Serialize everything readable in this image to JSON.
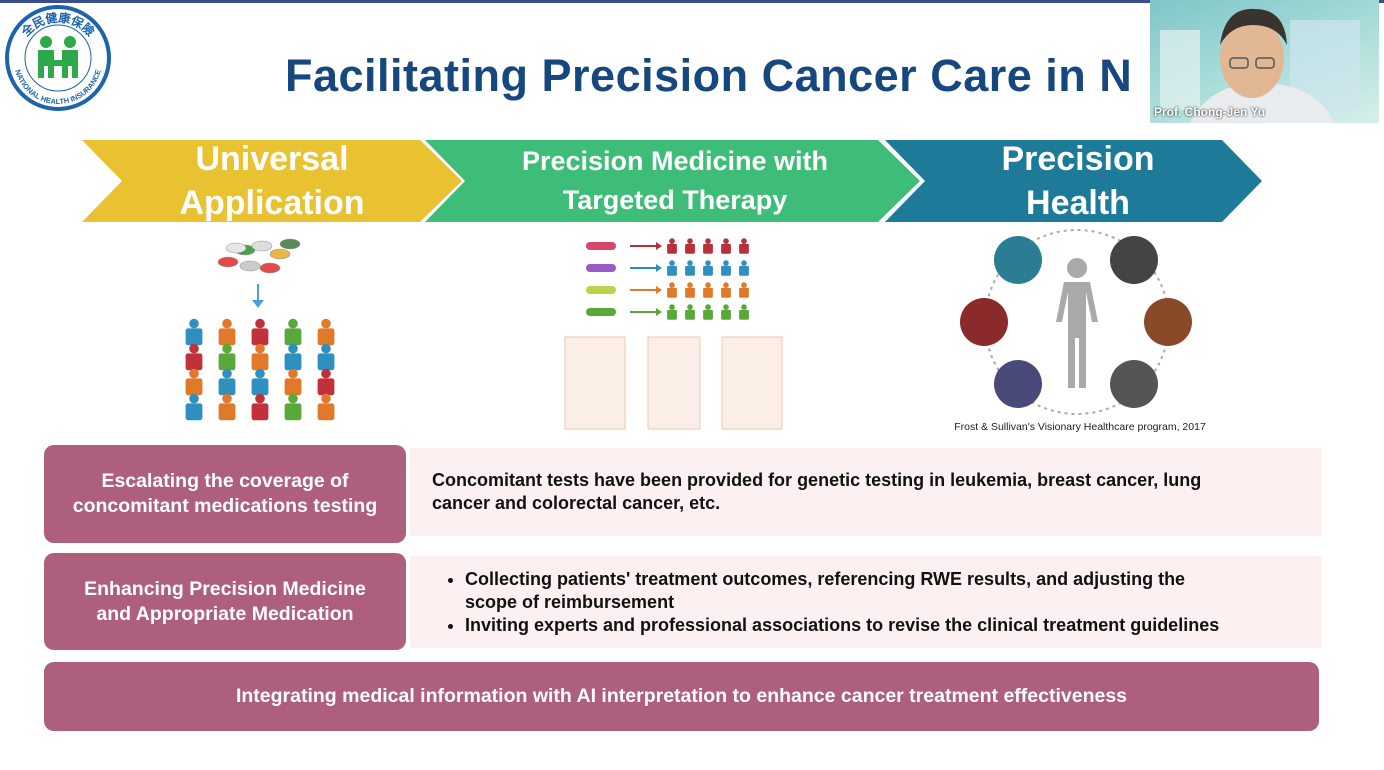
{
  "logo": {
    "text_zh": "全民健康保險",
    "text_en": "NATIONAL HEALTH INSURANCE"
  },
  "title": "Facilitating Precision Cancer Care in N",
  "stages": [
    {
      "lines": [
        "Universal",
        "Application"
      ]
    },
    {
      "lines": [
        "Precision Medicine with",
        "Targeted Therapy"
      ]
    },
    {
      "lines": [
        "Precision",
        "Health"
      ]
    }
  ],
  "source_note": "Frost & Sullivan's Visionary Healthcare program, 2017",
  "rows": [
    {
      "label_lines": [
        "Escalating the coverage of",
        "concomitant medications testing"
      ],
      "text_lines": [
        "Concomitant tests have been provided for genetic testing in leukemia, breast cancer, lung",
        "cancer and colorectal cancer, etc."
      ]
    },
    {
      "label_lines": [
        "Enhancing Precision Medicine",
        "and Appropriate Medication"
      ],
      "bullets": [
        [
          "Collecting patients' treatment outcomes, referencing RWE results, and adjusting the",
          "scope of reimbursement"
        ],
        [
          "Inviting experts and professional associations to revise the clinical treatment  guidelines"
        ]
      ]
    }
  ],
  "banner": "Integrating medical information with AI interpretation to enhance cancer treatment effectiveness",
  "video": {
    "name": "Prof. Chong-Jen Yu"
  }
}
